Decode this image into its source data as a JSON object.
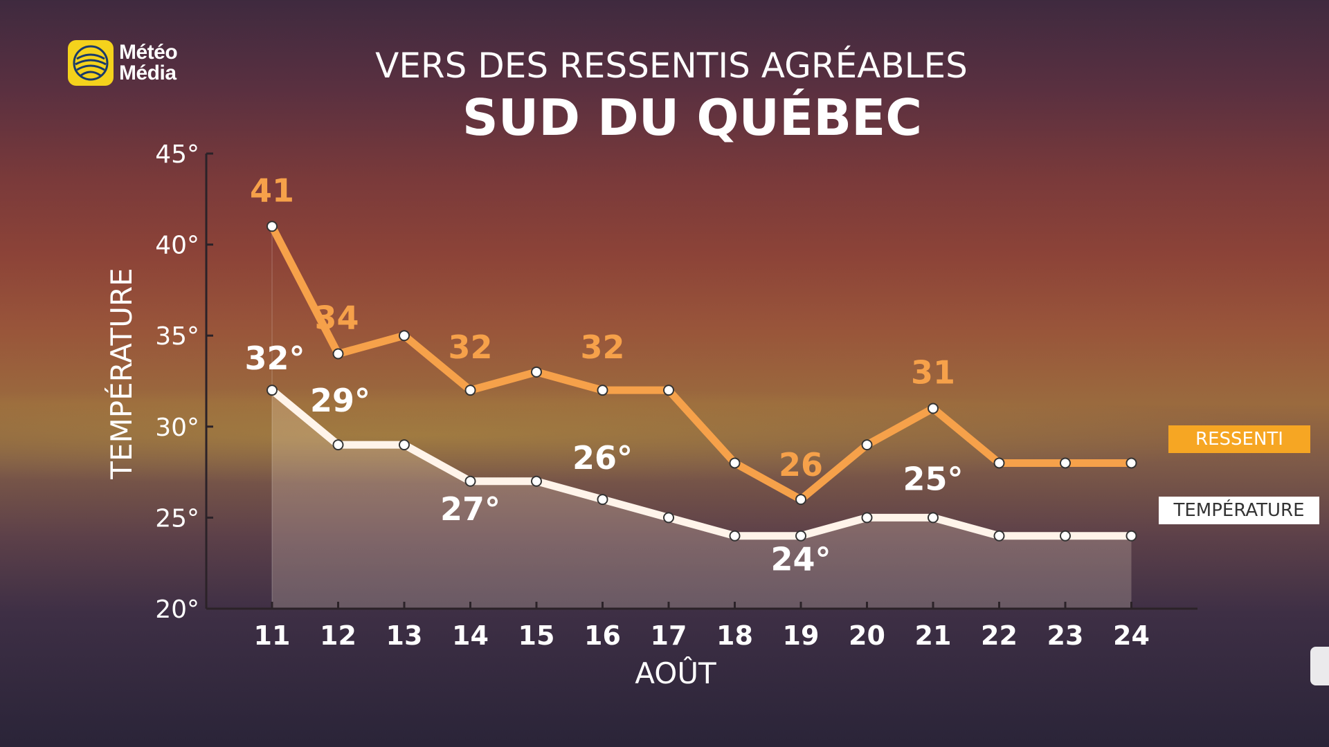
{
  "brand": {
    "line1": "Météo",
    "line2": "Média",
    "logo_icon": "meteomedia-globe-icon",
    "logo_color": "#f4d21c"
  },
  "header": {
    "subtitle": "VERS DES RESSENTIS AGRÉABLES",
    "title": "SUD DU QUÉBEC"
  },
  "legend": {
    "ressenti": "RESSENTI",
    "temperature": "TEMPÉRATURE"
  },
  "chart_data": {
    "type": "line",
    "ylabel": "TEMPÉRATURE",
    "xlabel": "AOÛT",
    "ylim": [
      20,
      45
    ],
    "yticks": [
      "20°",
      "25°",
      "30°",
      "35°",
      "40°",
      "45°"
    ],
    "categories": [
      "11",
      "12",
      "13",
      "14",
      "15",
      "16",
      "17",
      "18",
      "19",
      "20",
      "21",
      "22",
      "23",
      "24"
    ],
    "legend_position": "right",
    "series": [
      {
        "name": "RESSENTI",
        "color": "#f6a14a",
        "values": [
          41,
          34,
          35,
          32,
          33,
          32,
          32,
          28,
          26,
          29,
          31,
          28,
          28,
          28
        ],
        "labels": [
          {
            "index": 0,
            "text": "41"
          },
          {
            "index": 1,
            "text": "34"
          },
          {
            "index": 3,
            "text": "32"
          },
          {
            "index": 5,
            "text": "32"
          },
          {
            "index": 8,
            "text": "26"
          },
          {
            "index": 10,
            "text": "31"
          }
        ]
      },
      {
        "name": "TEMPÉRATURE",
        "color": "#fff4ea",
        "values": [
          32,
          29,
          29,
          27,
          27,
          26,
          25,
          24,
          24,
          25,
          25,
          24,
          24,
          24
        ],
        "labels": [
          {
            "index": 0,
            "text": "32°"
          },
          {
            "index": 1,
            "text": "29°"
          },
          {
            "index": 3,
            "text": "27°"
          },
          {
            "index": 5,
            "text": "26°"
          },
          {
            "index": 8,
            "text": "24°"
          },
          {
            "index": 10,
            "text": "25°"
          }
        ]
      }
    ]
  }
}
